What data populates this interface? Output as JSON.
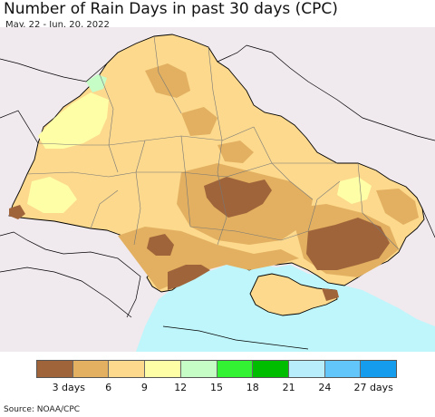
{
  "header": {
    "title": "Number of Rain Days in past 30 days (CPC)",
    "subtitle": "May. 22 - Jun. 20, 2022"
  },
  "legend": {
    "colors": [
      "#a0643a",
      "#e2b060",
      "#fcd98d",
      "#fefea6",
      "#c6fcc6",
      "#33f233",
      "#00bd00",
      "#b8eefb",
      "#63c6fb",
      "#159cec"
    ],
    "ticks": [
      "3 days",
      "6",
      "9",
      "12",
      "15",
      "18",
      "21",
      "24",
      "27 days"
    ]
  },
  "map": {
    "colors": {
      "sea": "#bff6fb",
      "outside": "#f0e9ee",
      "land_base": "#fcd98d",
      "dark": "#a0643a",
      "mid": "#e2b060",
      "light": "#fefea6",
      "green": "#c6fcc6",
      "border": "#000000",
      "oblast": "#777777"
    }
  },
  "footer": {
    "source": "Source: NOAA/CPC"
  }
}
